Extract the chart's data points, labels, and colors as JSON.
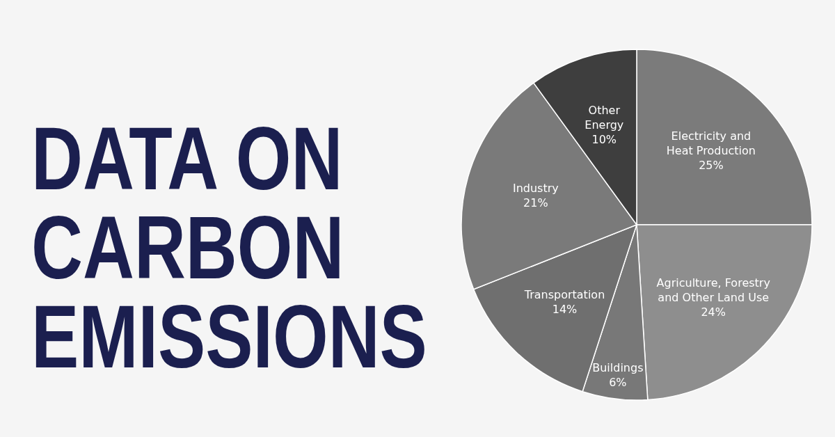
{
  "chart_data": {
    "type": "pie",
    "title": "DATA ON\nCARBON\nEMISSIONS",
    "categories": [
      "Electricity and\nHeat Production",
      "Agriculture, Forestry\nand Other Land Use",
      "Buildings",
      "Transportation",
      "Industry",
      "Other\nEnergy"
    ],
    "values": [
      25,
      24,
      6,
      14,
      21,
      10
    ],
    "value_labels": [
      "25%",
      "24%",
      "6%",
      "14%",
      "21%",
      "10%"
    ],
    "colors": [
      "#7b7b7b",
      "#8e8e8e",
      "#787878",
      "#6f6f6f",
      "#7a7a7a",
      "#3e3e3e"
    ],
    "legend": false
  }
}
